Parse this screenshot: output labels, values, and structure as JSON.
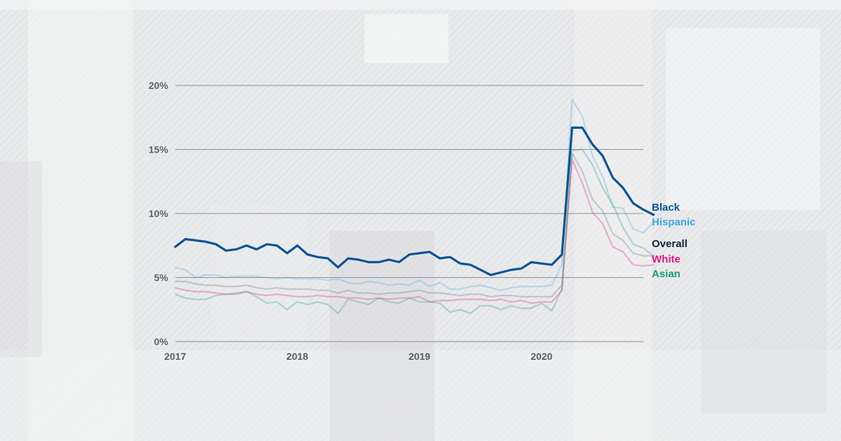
{
  "chart_data": {
    "type": "line",
    "title": "",
    "xlabel": "",
    "ylabel": "",
    "ylim": [
      0,
      20
    ],
    "yticks": [
      0,
      5,
      10,
      15,
      20
    ],
    "ytick_labels": [
      "0%",
      "5%",
      "10%",
      "15%",
      "20%"
    ],
    "xticks": [
      "2017",
      "2018",
      "2019",
      "2020"
    ],
    "x_start": "2017-01",
    "x_end": "2020-11",
    "grid": true,
    "legend_placement": "right end of lines",
    "series": [
      {
        "name": "Black",
        "color": "#0b5394",
        "emphasis": "bold",
        "values": [
          7.4,
          8.0,
          7.9,
          7.8,
          7.6,
          7.1,
          7.2,
          7.5,
          7.2,
          7.6,
          7.5,
          6.9,
          7.5,
          6.8,
          6.6,
          6.5,
          5.8,
          6.5,
          6.4,
          6.2,
          6.2,
          6.4,
          6.2,
          6.8,
          6.9,
          7.0,
          6.5,
          6.6,
          6.1,
          6.0,
          5.6,
          5.2,
          5.4,
          5.6,
          5.7,
          6.2,
          6.1,
          6.0,
          6.8,
          16.7,
          16.7,
          15.4,
          14.5,
          12.8,
          12.0,
          10.8,
          10.3,
          9.9
        ]
      },
      {
        "name": "Hispanic",
        "color": "#3ea8dc",
        "emphasis": "faded",
        "values": [
          5.8,
          5.6,
          5.0,
          5.2,
          5.2,
          5.0,
          5.1,
          5.1,
          5.1,
          5.0,
          4.9,
          5.0,
          4.9,
          4.9,
          4.9,
          4.8,
          4.9,
          4.6,
          4.5,
          4.7,
          4.6,
          4.4,
          4.5,
          4.4,
          4.8,
          4.3,
          4.6,
          4.1,
          4.1,
          4.3,
          4.4,
          4.2,
          4.0,
          4.2,
          4.3,
          4.3,
          4.3,
          4.4,
          6.0,
          18.9,
          17.6,
          14.5,
          12.9,
          10.5,
          10.4,
          8.8,
          8.5,
          9.3
        ]
      },
      {
        "name": "Overall",
        "color": "#6b7280",
        "emphasis": "faded",
        "values": [
          4.7,
          4.7,
          4.5,
          4.4,
          4.4,
          4.3,
          4.3,
          4.4,
          4.2,
          4.1,
          4.2,
          4.1,
          4.1,
          4.1,
          4.0,
          4.0,
          3.8,
          4.0,
          3.8,
          3.8,
          3.7,
          3.8,
          3.8,
          3.9,
          4.0,
          3.8,
          3.8,
          3.7,
          3.6,
          3.7,
          3.7,
          3.5,
          3.6,
          3.6,
          3.5,
          3.5,
          3.5,
          3.5,
          4.4,
          14.7,
          13.3,
          11.1,
          10.2,
          8.4,
          7.9,
          6.9,
          6.7,
          6.7
        ]
      },
      {
        "name": "White",
        "color": "#e0187d",
        "emphasis": "faded",
        "values": [
          4.2,
          4.0,
          3.9,
          3.9,
          3.8,
          3.7,
          3.7,
          3.9,
          3.7,
          3.6,
          3.7,
          3.6,
          3.5,
          3.5,
          3.6,
          3.5,
          3.5,
          3.4,
          3.4,
          3.3,
          3.4,
          3.3,
          3.4,
          3.4,
          3.5,
          3.1,
          3.2,
          3.2,
          3.3,
          3.3,
          3.3,
          3.2,
          3.3,
          3.1,
          3.2,
          3.0,
          3.1,
          3.1,
          4.0,
          14.2,
          12.4,
          10.1,
          9.2,
          7.4,
          7.0,
          6.0,
          5.9,
          6.0
        ]
      },
      {
        "name": "Asian",
        "color": "#1a9c72",
        "emphasis": "faded",
        "values": [
          3.7,
          3.4,
          3.3,
          3.3,
          3.6,
          3.7,
          3.8,
          3.9,
          3.5,
          3.0,
          3.1,
          2.5,
          3.1,
          2.9,
          3.1,
          2.9,
          2.2,
          3.3,
          3.1,
          2.9,
          3.4,
          3.1,
          3.0,
          3.4,
          3.1,
          3.1,
          3.0,
          2.3,
          2.5,
          2.2,
          2.8,
          2.8,
          2.5,
          2.8,
          2.6,
          2.6,
          3.0,
          2.4,
          4.1,
          14.9,
          15.0,
          13.8,
          12.0,
          10.7,
          8.9,
          7.6,
          7.3,
          6.7
        ]
      }
    ]
  }
}
